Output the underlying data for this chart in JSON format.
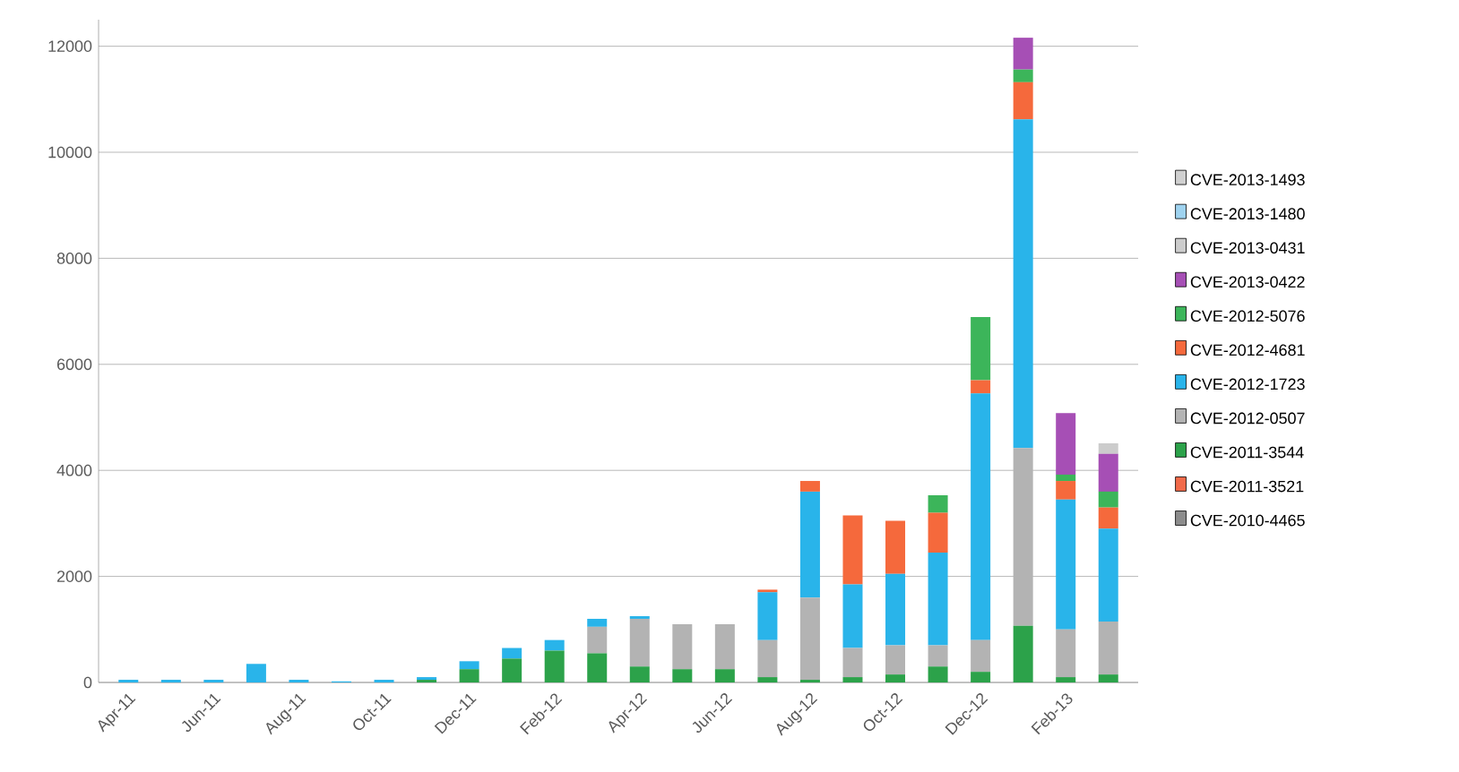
{
  "chart_data": {
    "type": "bar",
    "stacked": true,
    "grid": "y",
    "legend": "right",
    "categories": [
      "Apr-11",
      null,
      "Jun-11",
      null,
      "Aug-11",
      null,
      "Oct-11",
      null,
      "Dec-11",
      null,
      "Feb-12",
      null,
      "Apr-12",
      null,
      "Jun-12",
      null,
      "Aug-12",
      null,
      "Oct-12",
      null,
      "Dec-12",
      null,
      "Feb-13",
      null
    ],
    "ylim": [
      0,
      12500
    ],
    "yticks": [
      0,
      2000,
      4000,
      6000,
      8000,
      10000,
      12000
    ],
    "series": [
      {
        "name": "CVE-2010-4465",
        "color": "#8c8c8c",
        "values": [
          null,
          null,
          null,
          null,
          null,
          null,
          null,
          null,
          null,
          null,
          null,
          null,
          null,
          null,
          null,
          null,
          null,
          null,
          null,
          null,
          null,
          null,
          null,
          null
        ]
      },
      {
        "name": "CVE-2011-3521",
        "color": "#f26a4a",
        "values": [
          null,
          null,
          null,
          null,
          null,
          null,
          null,
          null,
          null,
          null,
          null,
          null,
          null,
          null,
          null,
          null,
          null,
          null,
          null,
          null,
          null,
          null,
          null,
          null
        ]
      },
      {
        "name": "CVE-2011-3544",
        "color": "#2ca24a",
        "values": [
          null,
          null,
          null,
          null,
          null,
          null,
          null,
          50,
          250,
          450,
          600,
          550,
          300,
          250,
          250,
          100,
          50,
          100,
          150,
          300,
          200,
          1070,
          100,
          150
        ]
      },
      {
        "name": "CVE-2012-0507",
        "color": "#b3b3b3",
        "values": [
          null,
          null,
          null,
          null,
          null,
          null,
          null,
          null,
          null,
          null,
          null,
          500,
          900,
          850,
          850,
          700,
          1550,
          550,
          550,
          400,
          600,
          3350,
          900,
          1000
        ]
      },
      {
        "name": "CVE-2012-1723",
        "color": "#29b4ea",
        "values": [
          50,
          50,
          50,
          350,
          50,
          20,
          50,
          50,
          150,
          200,
          200,
          150,
          50,
          null,
          null,
          900,
          2000,
          1200,
          1350,
          1750,
          4650,
          6200,
          2450,
          1750
        ]
      },
      {
        "name": "CVE-2012-4681",
        "color": "#f5693c",
        "values": [
          null,
          null,
          null,
          null,
          null,
          null,
          null,
          null,
          null,
          null,
          null,
          null,
          null,
          null,
          null,
          50,
          200,
          1300,
          1000,
          750,
          250,
          700,
          350,
          400
        ]
      },
      {
        "name": "CVE-2012-5076",
        "color": "#3cb55a",
        "values": [
          null,
          null,
          null,
          null,
          null,
          null,
          null,
          null,
          null,
          null,
          null,
          null,
          null,
          null,
          null,
          null,
          null,
          null,
          null,
          330,
          1190,
          240,
          120,
          300
        ]
      },
      {
        "name": "CVE-2013-0422",
        "color": "#a64fb5",
        "values": [
          null,
          null,
          null,
          null,
          null,
          null,
          null,
          null,
          null,
          null,
          null,
          null,
          null,
          null,
          null,
          null,
          null,
          null,
          null,
          null,
          null,
          600,
          1160,
          710
        ]
      },
      {
        "name": "CVE-2013-0431",
        "color": "#cccccc",
        "values": [
          null,
          null,
          null,
          null,
          null,
          null,
          null,
          null,
          null,
          null,
          null,
          null,
          null,
          null,
          null,
          null,
          null,
          null,
          null,
          null,
          null,
          null,
          null,
          200
        ]
      },
      {
        "name": "CVE-2013-1480",
        "color": "#9fd3f0",
        "values": [
          null,
          null,
          null,
          null,
          null,
          null,
          null,
          null,
          null,
          null,
          null,
          null,
          null,
          null,
          null,
          null,
          null,
          null,
          null,
          null,
          null,
          null,
          null,
          null
        ]
      },
      {
        "name": "CVE-2013-1493",
        "color": "#d0d0d0",
        "values": [
          null,
          null,
          null,
          null,
          null,
          null,
          null,
          null,
          null,
          null,
          null,
          null,
          null,
          null,
          null,
          null,
          null,
          null,
          null,
          null,
          null,
          null,
          null,
          null
        ]
      }
    ]
  }
}
